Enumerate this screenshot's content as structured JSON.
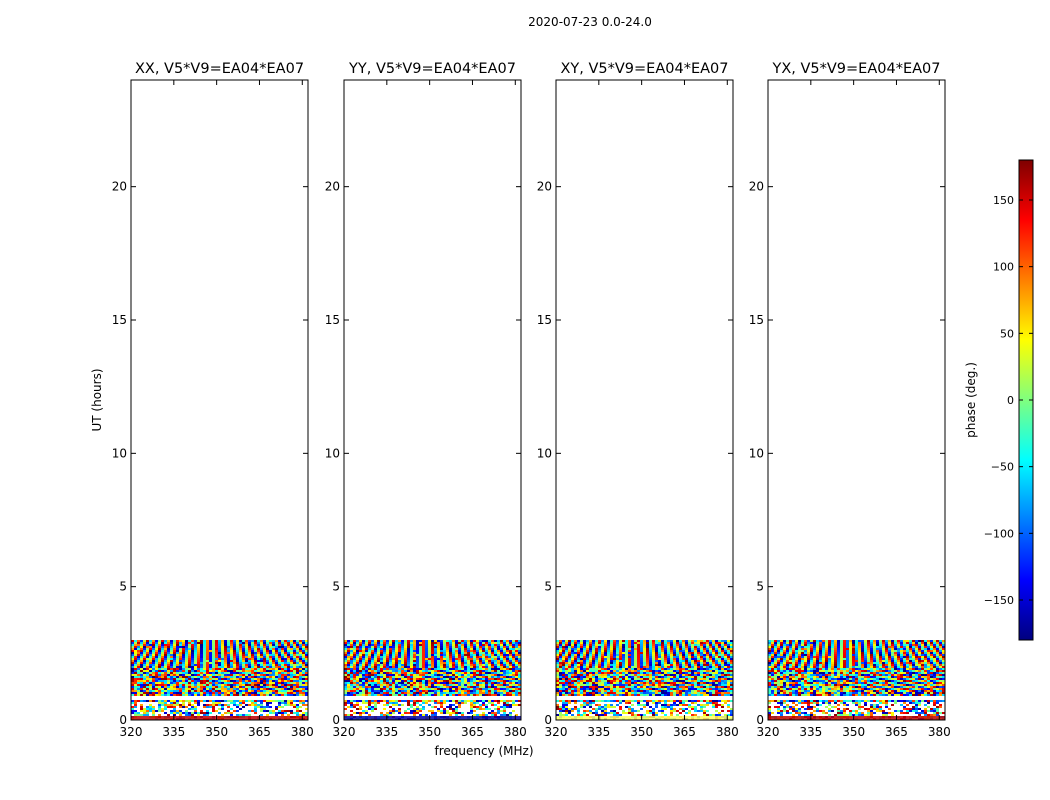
{
  "suptitle": "2020-07-23 0.0-24.0",
  "chart_data": {
    "type": "heatmap",
    "panels": [
      {
        "title": "XX, V5*V9=EA04*EA07"
      },
      {
        "title": "YY, V5*V9=EA04*EA07"
      },
      {
        "title": "XY, V5*V9=EA04*EA07"
      },
      {
        "title": "YX, V5*V9=EA04*EA07"
      }
    ],
    "xlabel": "frequency (MHz)",
    "ylabel": "UT (hours)",
    "xlim": [
      320,
      382
    ],
    "ylim": [
      0,
      24
    ],
    "xticks": [
      320,
      335,
      350,
      365,
      380
    ],
    "yticks": [
      0,
      5,
      10,
      15,
      20
    ],
    "data_extent_hours": [
      0,
      3
    ],
    "colorbar": {
      "label": "phase (deg.)",
      "range": [
        -180,
        180
      ],
      "ticks": [
        150,
        100,
        50,
        0,
        -50,
        -100,
        -150
      ],
      "tick_labels": [
        "150",
        "100",
        "50",
        "0",
        "−50",
        "−100",
        "−150"
      ],
      "colormap": [
        "#00007f",
        "#0000ff",
        "#007fff",
        "#00ffff",
        "#7fff7f",
        "#ffff00",
        "#ff7f00",
        "#ff0000",
        "#7f0000"
      ]
    }
  }
}
